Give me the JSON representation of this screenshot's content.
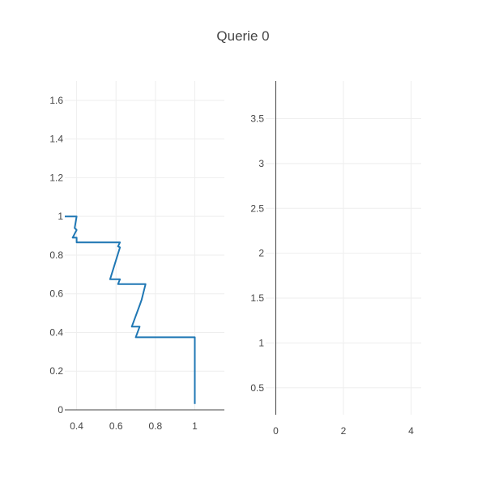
{
  "title": "Querie 0",
  "chart_data": [
    {
      "type": "line",
      "title": "Querie 0",
      "xlabel": "",
      "ylabel": "",
      "xlim": [
        0.34,
        1.15
      ],
      "ylim": [
        0,
        1.7
      ],
      "x_ticks": [
        0.4,
        0.6,
        0.8,
        1
      ],
      "y_ticks": [
        0,
        0.2,
        0.4,
        0.6,
        0.8,
        1,
        1.2,
        1.4,
        1.6
      ],
      "x_tick_labels": [
        "0.4",
        "0.6",
        "0.8",
        "1"
      ],
      "y_tick_labels": [
        "0",
        "0.2",
        "0.4",
        "0.6",
        "0.8",
        "1",
        "1.2",
        "1.4",
        "1.6"
      ],
      "grid": true,
      "line_color": "#1f77b4",
      "series": [
        {
          "x": [
            0.34,
            0.4,
            0.39,
            0.4,
            0.38,
            0.4,
            0.4,
            0.62,
            0.61,
            0.62,
            0.57,
            0.62,
            0.61,
            0.75,
            0.73,
            0.72,
            0.68,
            0.72,
            0.7,
            1.0,
            1.0,
            1.0
          ],
          "y": [
            1.0,
            1.0,
            0.94,
            0.93,
            0.89,
            0.89,
            0.866,
            0.866,
            0.845,
            0.84,
            0.675,
            0.675,
            0.65,
            0.65,
            0.57,
            0.54,
            0.43,
            0.43,
            0.375,
            0.375,
            0.15,
            0.03
          ]
        }
      ]
    },
    {
      "type": "line",
      "xlabel": "",
      "ylabel": "",
      "xlim": [
        -0.3,
        4.3
      ],
      "ylim": [
        0.2,
        3.92
      ],
      "x_ticks": [
        0,
        2,
        4
      ],
      "y_ticks": [
        0.5,
        1,
        1.5,
        2,
        2.5,
        3,
        3.5
      ],
      "x_tick_labels": [
        "0",
        "2",
        "4"
      ],
      "y_tick_labels": [
        "0.5",
        "1",
        "1.5",
        "2",
        "2.5",
        "3",
        "3.5"
      ],
      "grid": true,
      "series": []
    }
  ]
}
